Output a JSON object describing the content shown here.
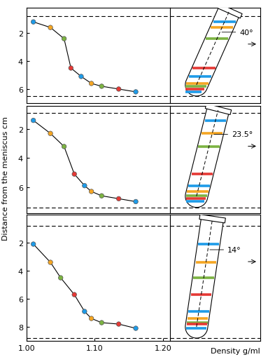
{
  "chart_data": [
    {
      "type": "line",
      "marker": "o",
      "line_style": "solid",
      "x": [
        1.01,
        1.035,
        1.055,
        1.065,
        1.08,
        1.095,
        1.11,
        1.135,
        1.16
      ],
      "values": [
        1.2,
        1.6,
        2.4,
        4.5,
        5.1,
        5.6,
        5.8,
        6.0,
        6.2
      ],
      "colors": [
        "#1e9be8",
        "#f5a623",
        "#7cb342",
        "#e53935",
        "#1e9be8",
        "#f5a623",
        "#7cb342",
        "#e53935",
        "#1e9be8"
      ],
      "xlim": [
        1.0,
        1.21
      ],
      "ylim": [
        7.0,
        0.2
      ],
      "yticks": [
        2,
        4,
        6
      ],
      "reference_lines": [
        0.8,
        6.5
      ],
      "tick_labels": "y",
      "tube_angle": 40,
      "annotation": "40°"
    },
    {
      "type": "line",
      "marker": "o",
      "line_style": "solid",
      "x": [
        1.01,
        1.035,
        1.055,
        1.07,
        1.085,
        1.095,
        1.11,
        1.135,
        1.16
      ],
      "values": [
        1.4,
        2.3,
        3.2,
        5.1,
        5.9,
        6.3,
        6.6,
        6.8,
        7.0
      ],
      "colors": [
        "#1e9be8",
        "#f5a623",
        "#7cb342",
        "#e53935",
        "#1e9be8",
        "#f5a623",
        "#7cb342",
        "#e53935",
        "#1e9be8"
      ],
      "xlim": [
        1.0,
        1.21
      ],
      "ylim": [
        7.8,
        0.4
      ],
      "yticks": [
        2,
        4,
        6
      ],
      "reference_lines": [
        0.9,
        7.4
      ],
      "tick_labels": "y",
      "tube_angle": 23.5,
      "annotation": "23.5°"
    },
    {
      "type": "line",
      "marker": "o",
      "line_style": "solid",
      "x": [
        1.01,
        1.035,
        1.05,
        1.07,
        1.085,
        1.095,
        1.11,
        1.135,
        1.16
      ],
      "values": [
        2.1,
        3.4,
        4.5,
        5.7,
        6.9,
        7.4,
        7.7,
        7.8,
        8.1
      ],
      "colors": [
        "#1e9be8",
        "#f5a623",
        "#7cb342",
        "#e53935",
        "#1e9be8",
        "#f5a623",
        "#7cb342",
        "#e53935",
        "#1e9be8"
      ],
      "xlim": [
        1.0,
        1.21
      ],
      "ylim": [
        9.0,
        0.0
      ],
      "yticks": [
        2,
        4,
        6,
        8
      ],
      "xticks": [
        {
          "value": 1.0,
          "label": "1.00"
        },
        {
          "value": 1.1,
          "label": "1.10"
        },
        {
          "value": 1.2,
          "label": "1.20"
        }
      ],
      "reference_lines": [
        0.8,
        8.8
      ],
      "tube_angle": 14,
      "annotation": "14°"
    }
  ],
  "y_label": "Distance from the meniscus cm",
  "x_label": "Density g/ml"
}
